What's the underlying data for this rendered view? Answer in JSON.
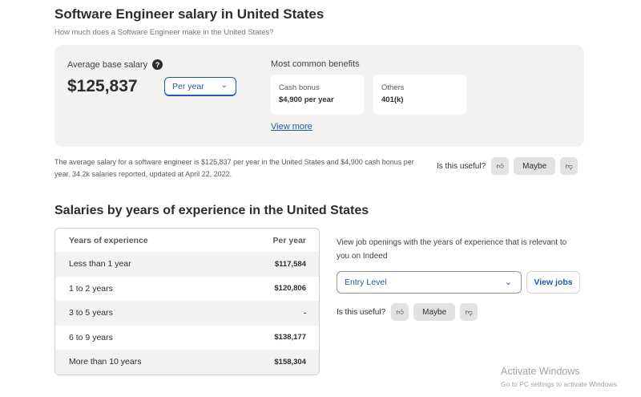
{
  "header": {
    "title": "Software Engineer salary in United States",
    "subtitle": "How much does a Software Engineer make in the United States?"
  },
  "summary": {
    "avg_label": "Average base salary",
    "help_icon": "question-mark-icon",
    "avg_value": "$125,837",
    "period_select": "Per year",
    "benefits_title": "Most common benefits",
    "benefits": [
      {
        "name": "Cash bonus",
        "value": "$4,900 per year"
      },
      {
        "name": "Others",
        "value": "401(k)"
      }
    ],
    "view_more": "View more"
  },
  "description": "The average salary for a software engineer is $125,837 per year in the United States and $4,900 cash bonus per year. 34.2k salaries reported, updated at April 22, 2022.",
  "feedback": {
    "question": "Is this useful?",
    "maybe": "Maybe",
    "thumbs_up_icon": "thumbs-up-icon",
    "thumbs_down_icon": "thumbs-down-icon"
  },
  "experience": {
    "title": "Salaries by years of experience in the United States",
    "col_years": "Years of experience",
    "col_pay": "Per year",
    "rows": [
      {
        "years": "Less than 1 year",
        "pay": "$117,584"
      },
      {
        "years": "1 to 2 years",
        "pay": "$120,806"
      },
      {
        "years": "3 to 5 years",
        "pay": "-"
      },
      {
        "years": "6 to 9 years",
        "pay": "$138,177"
      },
      {
        "years": "More than 10 years",
        "pay": "$158,304"
      }
    ],
    "openings_text": "View job openings with the years of experience that is relevant to you on Indeed",
    "level_select": "Entry Level",
    "view_jobs": "View jobs"
  },
  "watermark": {
    "line1": "Activate Windows",
    "line2": "Go to PC settings to activate Windows."
  },
  "colors": {
    "accent": "#2557a7",
    "card_bg": "#f3f2f1",
    "button_bg": "#e4e2e0"
  }
}
